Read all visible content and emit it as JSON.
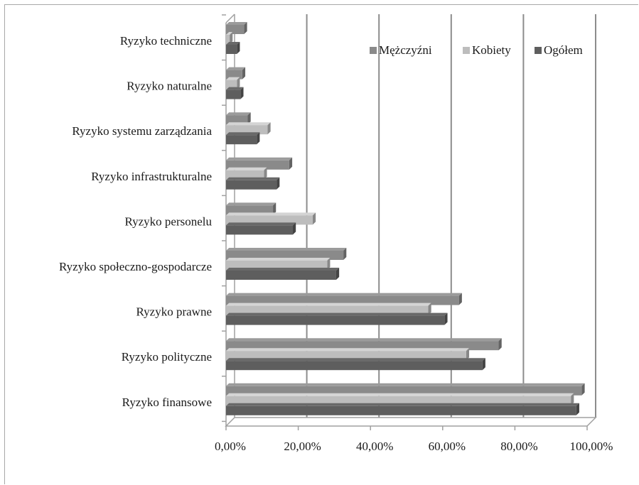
{
  "chart_data": {
    "type": "bar",
    "orientation": "horizontal",
    "style": "3d-clustered",
    "categories": [
      "Ryzyko techniczne",
      "Ryzyko naturalne",
      "Ryzyko systemu zarządzania",
      "Ryzyko infrastrukturalne",
      "Ryzyko personelu",
      "Ryzyko społeczno-gospodarcze",
      "Ryzyko prawne",
      "Ryzyko polityczne",
      "Ryzyko finansowe"
    ],
    "series": [
      {
        "name": "Mężczyźni",
        "color": "#8a8a8a",
        "values": [
          5,
          4.5,
          6,
          17.5,
          13,
          32.5,
          64.5,
          75.5,
          98.5
        ]
      },
      {
        "name": "Kobiety",
        "color": "#bdbdbd",
        "values": [
          1,
          3,
          11.5,
          10.5,
          24,
          28,
          56,
          66.5,
          95.5
        ]
      },
      {
        "name": "Ogółem",
        "color": "#5e5e5e",
        "values": [
          3,
          4,
          8.5,
          14,
          18.5,
          30.5,
          60.5,
          71,
          97
        ]
      }
    ],
    "xaxis": {
      "ticks": [
        0,
        20,
        40,
        60,
        80,
        100
      ],
      "tick_labels": [
        "0,00%",
        "20,00%",
        "40,00%",
        "60,00%",
        "80,00%",
        "100,00%"
      ],
      "range": [
        0,
        100
      ]
    },
    "title": "",
    "xlabel": "",
    "ylabel": "",
    "grid": true,
    "legend_position": "top-right"
  }
}
